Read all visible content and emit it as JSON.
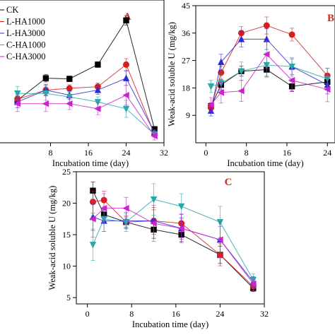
{
  "figure": {
    "legend": [
      "CK",
      "L-HA1000",
      "L-HA3000",
      "C-HA1000",
      "C-HA3000"
    ]
  },
  "colors": {
    "CK": "#000000",
    "L-HA1000": "#d81e1e",
    "L-HA3000": "#2b2bd6",
    "C-HA1000": "#2aa7a7",
    "C-HA3000": "#cc22cc"
  },
  "chart_data": [
    {
      "type": "line",
      "panel": "A",
      "xlabel": "Incubation time (day)",
      "ylabel": "",
      "xlim": [
        0,
        32
      ],
      "xticks": [
        8,
        16,
        24,
        32
      ],
      "grid": false,
      "x": [
        1,
        7,
        12,
        18,
        24,
        30
      ],
      "series": [
        {
          "name": "CK",
          "marker": "square",
          "values": [
            12.5,
            19.0,
            18.8,
            23.0,
            36.0,
            4.0
          ]
        },
        {
          "name": "L-HA1000",
          "marker": "circle",
          "values": [
            12.8,
            15.5,
            16.0,
            16.5,
            23.0,
            2.5
          ]
        },
        {
          "name": "L-HA3000",
          "marker": "triangle-up",
          "values": [
            12.0,
            15.5,
            14.0,
            15.5,
            19.0,
            3.0
          ]
        },
        {
          "name": "C-HA1000",
          "marker": "triangle-down",
          "values": [
            14.5,
            14.5,
            13.5,
            12.0,
            10.0,
            2.5
          ]
        },
        {
          "name": "C-HA3000",
          "marker": "triangle-left",
          "values": [
            11.5,
            11.5,
            11.5,
            10.0,
            14.0,
            2.0
          ]
        }
      ],
      "errors": [
        2.0,
        2.0,
        1.5,
        1.5,
        2.5,
        1.0
      ]
    },
    {
      "type": "line",
      "panel": "B",
      "xlabel": "Incubation time (day)",
      "ylabel": "Weak-acid soluble U (mg/kg)",
      "ylim": [
        0,
        45
      ],
      "yticks": [
        9,
        18,
        27,
        36,
        45
      ],
      "xlim": [
        -2,
        26
      ],
      "xticks": [
        0,
        8,
        16,
        24
      ],
      "grid": false,
      "x": [
        1,
        3,
        7,
        12,
        17,
        24
      ],
      "series": [
        {
          "name": "CK",
          "marker": "square",
          "values": [
            12.0,
            19.0,
            23.5,
            24.0,
            18.5,
            20.0
          ]
        },
        {
          "name": "L-HA1000",
          "marker": "circle",
          "values": [
            11.5,
            23.0,
            36.0,
            38.5,
            35.5,
            22.0
          ]
        },
        {
          "name": "L-HA3000",
          "marker": "triangle-up",
          "values": [
            10.5,
            26.5,
            34.0,
            34.0,
            25.0,
            19.0
          ]
        },
        {
          "name": "C-HA1000",
          "marker": "triangle-down",
          "values": [
            18.5,
            19.5,
            23.5,
            25.5,
            25.0,
            21.0
          ]
        },
        {
          "name": "C-HA3000",
          "marker": "triangle-left",
          "values": [
            12.5,
            16.5,
            17.0,
            29.0,
            20.5,
            17.5
          ]
        }
      ],
      "errors": [
        2.0,
        3.0,
        3.0,
        4.0,
        3.0,
        3.5
      ]
    },
    {
      "type": "line",
      "panel": "C",
      "xlabel": "Incubation time (day)",
      "ylabel": "Weak-acid soluble U (mg/kg)",
      "ylim": [
        4,
        25
      ],
      "yticks": [
        5,
        10,
        15,
        20,
        25
      ],
      "xlim": [
        -2,
        32
      ],
      "xticks": [
        0,
        8,
        16,
        24,
        32
      ],
      "grid": false,
      "x": [
        1,
        3,
        7,
        12,
        17,
        24,
        30
      ],
      "series": [
        {
          "name": "CK",
          "marker": "square",
          "values": [
            22.0,
            18.2,
            17.0,
            15.8,
            15.0,
            11.8,
            6.5
          ]
        },
        {
          "name": "L-HA1000",
          "marker": "circle",
          "values": [
            20.2,
            20.5,
            17.0,
            17.2,
            16.8,
            11.8,
            6.8
          ]
        },
        {
          "name": "L-HA3000",
          "marker": "triangle-up",
          "values": [
            17.8,
            17.2,
            17.2,
            17.2,
            16.0,
            14.2,
            7.5
          ]
        },
        {
          "name": "C-HA1000",
          "marker": "triangle-down",
          "values": [
            13.4,
            17.5,
            17.0,
            20.6,
            19.5,
            17.0,
            7.8
          ]
        },
        {
          "name": "C-HA3000",
          "marker": "triangle-left",
          "values": [
            17.5,
            19.2,
            19.2,
            16.8,
            16.0,
            14.2,
            7.2
          ]
        }
      ],
      "errors": [
        2.5,
        2.0,
        1.5,
        2.5,
        2.0,
        2.5,
        1.0
      ]
    }
  ]
}
